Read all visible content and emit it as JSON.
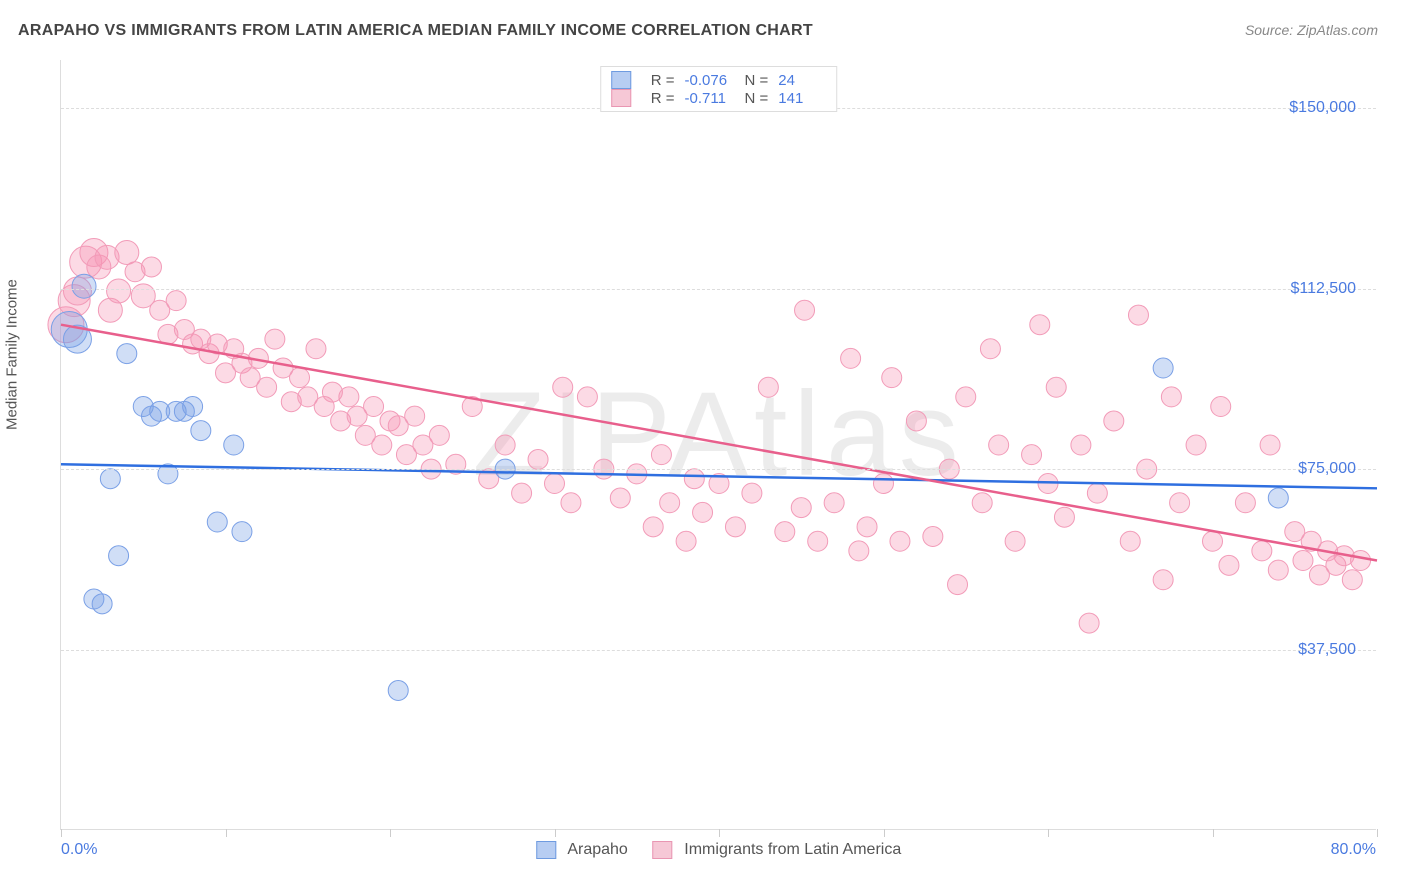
{
  "title": "ARAPAHO VS IMMIGRANTS FROM LATIN AMERICA MEDIAN FAMILY INCOME CORRELATION CHART",
  "source": "Source: ZipAtlas.com",
  "watermark": "ZIPAtlas",
  "ylabel": "Median Family Income",
  "axes": {
    "xmin": 0.0,
    "xmax": 80.0,
    "ymin": 0,
    "ymax": 160000,
    "xlabel_min": "0.0%",
    "xlabel_max": "80.0%",
    "yticks": [
      {
        "v": 37500,
        "label": "$37,500"
      },
      {
        "v": 75000,
        "label": "$75,000"
      },
      {
        "v": 112500,
        "label": "$112,500"
      },
      {
        "v": 150000,
        "label": "$150,000"
      }
    ],
    "xtick_positions": [
      0,
      10,
      20,
      30,
      40,
      50,
      60,
      70,
      80
    ],
    "grid_color": "#dddddd",
    "label_color": "#4a7ae0"
  },
  "series": [
    {
      "name": "Arapaho",
      "color_fill": "rgba(120,160,230,0.35)",
      "color_stroke": "#7aa0e6",
      "line_color": "#2f6fe0",
      "chip_fill": "#b7cdf2",
      "chip_stroke": "#6f9be0",
      "R": "-0.076",
      "N": "24",
      "trend": {
        "x1": 0,
        "y1": 76000,
        "x2": 80,
        "y2": 71000
      },
      "points": [
        {
          "x": 0.5,
          "y": 104000,
          "r": 18
        },
        {
          "x": 1.0,
          "y": 102000,
          "r": 14
        },
        {
          "x": 1.4,
          "y": 113000,
          "r": 12
        },
        {
          "x": 2.0,
          "y": 48000,
          "r": 10
        },
        {
          "x": 2.5,
          "y": 47000,
          "r": 10
        },
        {
          "x": 3.0,
          "y": 73000,
          "r": 10
        },
        {
          "x": 3.5,
          "y": 57000,
          "r": 10
        },
        {
          "x": 4.0,
          "y": 99000,
          "r": 10
        },
        {
          "x": 5.0,
          "y": 88000,
          "r": 10
        },
        {
          "x": 5.5,
          "y": 86000,
          "r": 10
        },
        {
          "x": 6.0,
          "y": 87000,
          "r": 10
        },
        {
          "x": 6.5,
          "y": 74000,
          "r": 10
        },
        {
          "x": 7.0,
          "y": 87000,
          "r": 10
        },
        {
          "x": 7.5,
          "y": 87000,
          "r": 10
        },
        {
          "x": 8.0,
          "y": 88000,
          "r": 10
        },
        {
          "x": 8.5,
          "y": 83000,
          "r": 10
        },
        {
          "x": 9.5,
          "y": 64000,
          "r": 10
        },
        {
          "x": 10.5,
          "y": 80000,
          "r": 10
        },
        {
          "x": 11.0,
          "y": 62000,
          "r": 10
        },
        {
          "x": 20.5,
          "y": 29000,
          "r": 10
        },
        {
          "x": 27.0,
          "y": 75000,
          "r": 10
        },
        {
          "x": 67.0,
          "y": 96000,
          "r": 10
        },
        {
          "x": 74.0,
          "y": 69000,
          "r": 10
        }
      ]
    },
    {
      "name": "Immigrants from Latin America",
      "color_fill": "rgba(245,150,180,0.35)",
      "color_stroke": "#f29bb8",
      "line_color": "#e85f8c",
      "chip_fill": "#f6c8d6",
      "chip_stroke": "#e996b2",
      "R": "-0.711",
      "N": "141",
      "trend": {
        "x1": 0,
        "y1": 105000,
        "x2": 80,
        "y2": 56000
      },
      "points": [
        {
          "x": 0.3,
          "y": 105000,
          "r": 18
        },
        {
          "x": 0.8,
          "y": 110000,
          "r": 16
        },
        {
          "x": 1.0,
          "y": 112000,
          "r": 14
        },
        {
          "x": 1.5,
          "y": 118000,
          "r": 16
        },
        {
          "x": 2.0,
          "y": 120000,
          "r": 14
        },
        {
          "x": 2.3,
          "y": 117000,
          "r": 12
        },
        {
          "x": 2.8,
          "y": 119000,
          "r": 12
        },
        {
          "x": 3.0,
          "y": 108000,
          "r": 12
        },
        {
          "x": 3.5,
          "y": 112000,
          "r": 12
        },
        {
          "x": 4.0,
          "y": 120000,
          "r": 12
        },
        {
          "x": 4.5,
          "y": 116000,
          "r": 10
        },
        {
          "x": 5.0,
          "y": 111000,
          "r": 12
        },
        {
          "x": 5.5,
          "y": 117000,
          "r": 10
        },
        {
          "x": 6.0,
          "y": 108000,
          "r": 10
        },
        {
          "x": 6.5,
          "y": 103000,
          "r": 10
        },
        {
          "x": 7.0,
          "y": 110000,
          "r": 10
        },
        {
          "x": 7.5,
          "y": 104000,
          "r": 10
        },
        {
          "x": 8.0,
          "y": 101000,
          "r": 10
        },
        {
          "x": 8.5,
          "y": 102000,
          "r": 10
        },
        {
          "x": 9.0,
          "y": 99000,
          "r": 10
        },
        {
          "x": 9.5,
          "y": 101000,
          "r": 10
        },
        {
          "x": 10.0,
          "y": 95000,
          "r": 10
        },
        {
          "x": 10.5,
          "y": 100000,
          "r": 10
        },
        {
          "x": 11.0,
          "y": 97000,
          "r": 10
        },
        {
          "x": 11.5,
          "y": 94000,
          "r": 10
        },
        {
          "x": 12.0,
          "y": 98000,
          "r": 10
        },
        {
          "x": 12.5,
          "y": 92000,
          "r": 10
        },
        {
          "x": 13.0,
          "y": 102000,
          "r": 10
        },
        {
          "x": 13.5,
          "y": 96000,
          "r": 10
        },
        {
          "x": 14.0,
          "y": 89000,
          "r": 10
        },
        {
          "x": 14.5,
          "y": 94000,
          "r": 10
        },
        {
          "x": 15.0,
          "y": 90000,
          "r": 10
        },
        {
          "x": 15.5,
          "y": 100000,
          "r": 10
        },
        {
          "x": 16.0,
          "y": 88000,
          "r": 10
        },
        {
          "x": 16.5,
          "y": 91000,
          "r": 10
        },
        {
          "x": 17.0,
          "y": 85000,
          "r": 10
        },
        {
          "x": 17.5,
          "y": 90000,
          "r": 10
        },
        {
          "x": 18.0,
          "y": 86000,
          "r": 10
        },
        {
          "x": 18.5,
          "y": 82000,
          "r": 10
        },
        {
          "x": 19.0,
          "y": 88000,
          "r": 10
        },
        {
          "x": 19.5,
          "y": 80000,
          "r": 10
        },
        {
          "x": 20.0,
          "y": 85000,
          "r": 10
        },
        {
          "x": 20.5,
          "y": 84000,
          "r": 10
        },
        {
          "x": 21.0,
          "y": 78000,
          "r": 10
        },
        {
          "x": 21.5,
          "y": 86000,
          "r": 10
        },
        {
          "x": 22.0,
          "y": 80000,
          "r": 10
        },
        {
          "x": 22.5,
          "y": 75000,
          "r": 10
        },
        {
          "x": 23.0,
          "y": 82000,
          "r": 10
        },
        {
          "x": 24.0,
          "y": 76000,
          "r": 10
        },
        {
          "x": 25.0,
          "y": 88000,
          "r": 10
        },
        {
          "x": 26.0,
          "y": 73000,
          "r": 10
        },
        {
          "x": 27.0,
          "y": 80000,
          "r": 10
        },
        {
          "x": 28.0,
          "y": 70000,
          "r": 10
        },
        {
          "x": 29.0,
          "y": 77000,
          "r": 10
        },
        {
          "x": 30.0,
          "y": 72000,
          "r": 10
        },
        {
          "x": 30.5,
          "y": 92000,
          "r": 10
        },
        {
          "x": 31.0,
          "y": 68000,
          "r": 10
        },
        {
          "x": 32.0,
          "y": 90000,
          "r": 10
        },
        {
          "x": 33.0,
          "y": 75000,
          "r": 10
        },
        {
          "x": 34.0,
          "y": 69000,
          "r": 10
        },
        {
          "x": 35.0,
          "y": 74000,
          "r": 10
        },
        {
          "x": 36.0,
          "y": 63000,
          "r": 10
        },
        {
          "x": 36.5,
          "y": 78000,
          "r": 10
        },
        {
          "x": 37.0,
          "y": 68000,
          "r": 10
        },
        {
          "x": 38.0,
          "y": 60000,
          "r": 10
        },
        {
          "x": 38.5,
          "y": 73000,
          "r": 10
        },
        {
          "x": 39.0,
          "y": 66000,
          "r": 10
        },
        {
          "x": 40.0,
          "y": 72000,
          "r": 10
        },
        {
          "x": 41.0,
          "y": 63000,
          "r": 10
        },
        {
          "x": 42.0,
          "y": 70000,
          "r": 10
        },
        {
          "x": 43.0,
          "y": 92000,
          "r": 10
        },
        {
          "x": 44.0,
          "y": 62000,
          "r": 10
        },
        {
          "x": 45.0,
          "y": 67000,
          "r": 10
        },
        {
          "x": 45.2,
          "y": 108000,
          "r": 10
        },
        {
          "x": 46.0,
          "y": 60000,
          "r": 10
        },
        {
          "x": 47.0,
          "y": 68000,
          "r": 10
        },
        {
          "x": 48.0,
          "y": 98000,
          "r": 10
        },
        {
          "x": 48.5,
          "y": 58000,
          "r": 10
        },
        {
          "x": 49.0,
          "y": 63000,
          "r": 10
        },
        {
          "x": 50.0,
          "y": 72000,
          "r": 10
        },
        {
          "x": 50.5,
          "y": 94000,
          "r": 10
        },
        {
          "x": 51.0,
          "y": 60000,
          "r": 10
        },
        {
          "x": 52.0,
          "y": 85000,
          "r": 10
        },
        {
          "x": 53.0,
          "y": 61000,
          "r": 10
        },
        {
          "x": 54.0,
          "y": 75000,
          "r": 10
        },
        {
          "x": 54.5,
          "y": 51000,
          "r": 10
        },
        {
          "x": 55.0,
          "y": 90000,
          "r": 10
        },
        {
          "x": 56.0,
          "y": 68000,
          "r": 10
        },
        {
          "x": 56.5,
          "y": 100000,
          "r": 10
        },
        {
          "x": 57.0,
          "y": 80000,
          "r": 10
        },
        {
          "x": 58.0,
          "y": 60000,
          "r": 10
        },
        {
          "x": 59.0,
          "y": 78000,
          "r": 10
        },
        {
          "x": 59.5,
          "y": 105000,
          "r": 10
        },
        {
          "x": 60.0,
          "y": 72000,
          "r": 10
        },
        {
          "x": 60.5,
          "y": 92000,
          "r": 10
        },
        {
          "x": 61.0,
          "y": 65000,
          "r": 10
        },
        {
          "x": 62.0,
          "y": 80000,
          "r": 10
        },
        {
          "x": 62.5,
          "y": 43000,
          "r": 10
        },
        {
          "x": 63.0,
          "y": 70000,
          "r": 10
        },
        {
          "x": 64.0,
          "y": 85000,
          "r": 10
        },
        {
          "x": 65.0,
          "y": 60000,
          "r": 10
        },
        {
          "x": 65.5,
          "y": 107000,
          "r": 10
        },
        {
          "x": 66.0,
          "y": 75000,
          "r": 10
        },
        {
          "x": 67.0,
          "y": 52000,
          "r": 10
        },
        {
          "x": 67.5,
          "y": 90000,
          "r": 10
        },
        {
          "x": 68.0,
          "y": 68000,
          "r": 10
        },
        {
          "x": 69.0,
          "y": 80000,
          "r": 10
        },
        {
          "x": 70.0,
          "y": 60000,
          "r": 10
        },
        {
          "x": 70.5,
          "y": 88000,
          "r": 10
        },
        {
          "x": 71.0,
          "y": 55000,
          "r": 10
        },
        {
          "x": 72.0,
          "y": 68000,
          "r": 10
        },
        {
          "x": 73.0,
          "y": 58000,
          "r": 10
        },
        {
          "x": 73.5,
          "y": 80000,
          "r": 10
        },
        {
          "x": 74.0,
          "y": 54000,
          "r": 10
        },
        {
          "x": 75.0,
          "y": 62000,
          "r": 10
        },
        {
          "x": 75.5,
          "y": 56000,
          "r": 10
        },
        {
          "x": 76.0,
          "y": 60000,
          "r": 10
        },
        {
          "x": 76.5,
          "y": 53000,
          "r": 10
        },
        {
          "x": 77.0,
          "y": 58000,
          "r": 10
        },
        {
          "x": 77.5,
          "y": 55000,
          "r": 10
        },
        {
          "x": 78.0,
          "y": 57000,
          "r": 10
        },
        {
          "x": 78.5,
          "y": 52000,
          "r": 10
        },
        {
          "x": 79.0,
          "y": 56000,
          "r": 10
        }
      ]
    }
  ]
}
